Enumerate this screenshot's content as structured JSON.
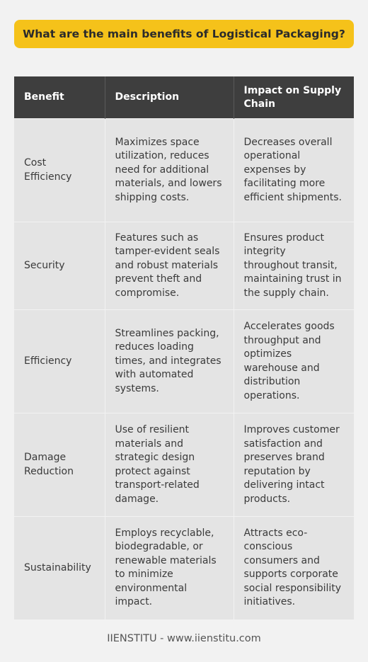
{
  "title": "What are the main benefits of Logistical Packaging?",
  "table": {
    "headers": [
      "Benefit",
      "Description",
      "Impact on Supply Chain"
    ],
    "rows": [
      {
        "benefit": "Cost Efficiency",
        "description": "Maximizes space utilization, reduces need for additional materials, and lowers shipping costs.",
        "impact": "Decreases overall operational expenses by facilitating more efficient shipments."
      },
      {
        "benefit": "Security",
        "description": "Features such as tamper-evident seals and robust materials prevent theft and compromise.",
        "impact": "Ensures product integrity throughout transit, maintaining trust in the supply chain."
      },
      {
        "benefit": "Efficiency",
        "description": "Streamlines packing, reduces loading times, and integrates with automated systems.",
        "impact": "Accelerates goods throughput and optimizes warehouse and distribution operations."
      },
      {
        "benefit": "Damage Reduction",
        "description": "Use of resilient materials and strategic design protect against transport-related damage.",
        "impact": "Improves customer satisfaction and preserves brand reputation by delivering intact products."
      },
      {
        "benefit": "Sustainability",
        "description": "Employs recyclable, biodegradable, or renewable materials to minimize environmental impact.",
        "impact": "Attracts eco-conscious consumers and supports corporate social responsibility initiatives."
      }
    ]
  },
  "footer": "IIENSTITU - www.iienstitu.com",
  "colors": {
    "banner": "#f5c21a",
    "header_bg": "#3e3e3e",
    "cell_bg": "#e4e4e4",
    "page_bg": "#f2f2f2"
  }
}
